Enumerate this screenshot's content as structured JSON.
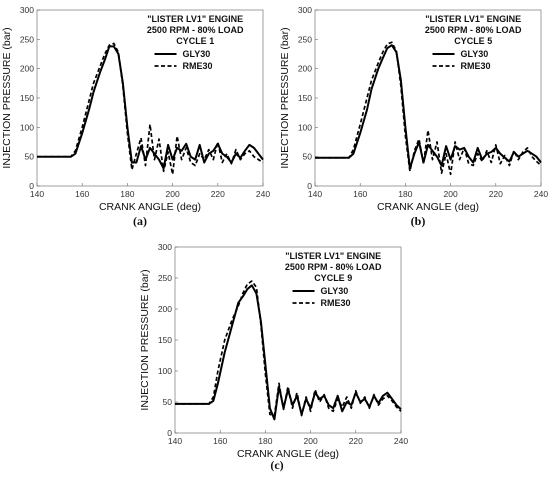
{
  "chart_data": [
    {
      "type": "line",
      "panel_label": "(a)",
      "title_lines": [
        "\"LISTER LV1\" ENGINE",
        "2500 RPM - 80% LOAD",
        "CYCLE 1"
      ],
      "xlabel": "CRANK ANGLE (deg)",
      "ylabel": "INJECTION PRESSURE (bar)",
      "xlim": [
        140,
        240
      ],
      "ylim": [
        0,
        300
      ],
      "xticks": [
        140,
        160,
        180,
        200,
        220,
        240
      ],
      "yticks": [
        0,
        50,
        100,
        150,
        200,
        250,
        300
      ],
      "grid": false,
      "legend_position": "top-right",
      "series": [
        {
          "name": "GLY30",
          "style": "solid",
          "color": "#000000",
          "x": [
            140,
            150,
            155,
            157,
            160,
            163,
            165,
            168,
            170,
            172,
            174,
            176,
            178,
            180,
            182,
            184,
            186,
            188,
            190,
            192,
            194,
            196,
            198,
            200,
            202,
            204,
            206,
            208,
            210,
            212,
            214,
            216,
            218,
            220,
            222,
            224,
            226,
            228,
            230,
            232,
            234,
            236,
            238,
            240
          ],
          "y": [
            50,
            50,
            50,
            55,
            90,
            130,
            160,
            195,
            215,
            238,
            238,
            225,
            175,
            100,
            40,
            40,
            68,
            45,
            65,
            55,
            45,
            30,
            70,
            45,
            65,
            60,
            72,
            50,
            45,
            70,
            40,
            55,
            60,
            72,
            55,
            50,
            40,
            55,
            48,
            60,
            70,
            65,
            55,
            45
          ]
        },
        {
          "name": "RME30",
          "style": "dashed",
          "color": "#000000",
          "x": [
            140,
            150,
            155,
            157,
            160,
            163,
            165,
            168,
            170,
            172,
            174,
            176,
            178,
            180,
            182,
            184,
            186,
            188,
            190,
            192,
            194,
            196,
            198,
            200,
            202,
            204,
            206,
            208,
            210,
            212,
            214,
            216,
            218,
            220,
            222,
            224,
            226,
            228,
            230,
            232,
            234,
            236,
            238,
            240
          ],
          "y": [
            50,
            50,
            50,
            60,
            100,
            145,
            175,
            205,
            225,
            240,
            243,
            228,
            170,
            90,
            28,
            55,
            82,
            35,
            105,
            45,
            80,
            25,
            58,
            20,
            85,
            45,
            65,
            40,
            35,
            55,
            45,
            62,
            45,
            75,
            40,
            55,
            38,
            62,
            45,
            55,
            60,
            50,
            45,
            40
          ]
        }
      ]
    },
    {
      "type": "line",
      "panel_label": "(b)",
      "title_lines": [
        "\"LISTER LV1\" ENGINE",
        "2500 RPM - 80% LOAD",
        "CYCLE 5"
      ],
      "xlabel": "CRANK ANGLE (deg)",
      "ylabel": "INJECTION PRESSURE (bar)",
      "xlim": [
        140,
        240
      ],
      "ylim": [
        0,
        300
      ],
      "xticks": [
        140,
        160,
        180,
        200,
        220,
        240
      ],
      "yticks": [
        0,
        50,
        100,
        150,
        200,
        250,
        300
      ],
      "grid": false,
      "legend_position": "top-right",
      "series": [
        {
          "name": "GLY30",
          "style": "solid",
          "color": "#000000",
          "x": [
            140,
            150,
            155,
            157,
            160,
            163,
            165,
            168,
            170,
            172,
            174,
            176,
            178,
            180,
            182,
            184,
            186,
            188,
            190,
            192,
            194,
            196,
            198,
            200,
            202,
            204,
            206,
            208,
            210,
            212,
            214,
            216,
            218,
            220,
            222,
            224,
            226,
            228,
            230,
            232,
            234,
            236,
            238,
            240
          ],
          "y": [
            48,
            48,
            48,
            55,
            90,
            130,
            165,
            200,
            218,
            235,
            240,
            228,
            180,
            100,
            30,
            55,
            75,
            40,
            70,
            60,
            50,
            35,
            68,
            45,
            68,
            62,
            65,
            50,
            40,
            65,
            45,
            55,
            58,
            65,
            55,
            48,
            42,
            58,
            50,
            55,
            60,
            55,
            50,
            40
          ]
        },
        {
          "name": "RME30",
          "style": "dashed",
          "color": "#000000",
          "x": [
            140,
            150,
            155,
            157,
            160,
            163,
            165,
            168,
            170,
            172,
            174,
            176,
            178,
            180,
            182,
            184,
            186,
            188,
            190,
            192,
            194,
            196,
            198,
            200,
            202,
            204,
            206,
            208,
            210,
            212,
            214,
            216,
            218,
            220,
            222,
            224,
            226,
            228,
            230,
            232,
            234,
            236,
            238,
            240
          ],
          "y": [
            48,
            48,
            48,
            62,
            105,
            150,
            180,
            210,
            228,
            242,
            245,
            230,
            170,
            85,
            25,
            60,
            80,
            38,
            95,
            45,
            75,
            22,
            55,
            20,
            75,
            45,
            65,
            38,
            35,
            55,
            42,
            60,
            40,
            70,
            38,
            52,
            35,
            60,
            45,
            58,
            65,
            50,
            42,
            35
          ]
        }
      ]
    },
    {
      "type": "line",
      "panel_label": "(c)",
      "title_lines": [
        "\"LISTER LV1\" ENGINE",
        "2500 RPM - 80% LOAD",
        "CYCLE 9"
      ],
      "xlabel": "CRANK ANGLE (deg)",
      "ylabel": "INJECTION PRESSURE (bar)",
      "xlim": [
        140,
        240
      ],
      "ylim": [
        0,
        300
      ],
      "xticks": [
        140,
        160,
        180,
        200,
        220,
        240
      ],
      "yticks": [
        0,
        50,
        100,
        150,
        200,
        250,
        300
      ],
      "grid": false,
      "legend_position": "top-right",
      "series": [
        {
          "name": "GLY30",
          "style": "solid",
          "color": "#000000",
          "x": [
            140,
            150,
            155,
            157,
            159,
            162,
            165,
            168,
            170,
            172,
            174,
            176,
            178,
            180,
            182,
            184,
            186,
            188,
            190,
            192,
            194,
            196,
            198,
            200,
            202,
            204,
            206,
            208,
            210,
            212,
            214,
            216,
            218,
            220,
            222,
            224,
            226,
            228,
            230,
            232,
            234,
            236,
            238,
            240
          ],
          "y": [
            47,
            47,
            47,
            52,
            80,
            130,
            170,
            210,
            220,
            232,
            238,
            225,
            180,
            110,
            40,
            22,
            75,
            40,
            70,
            45,
            60,
            30,
            55,
            40,
            65,
            55,
            60,
            45,
            40,
            60,
            35,
            50,
            45,
            65,
            50,
            55,
            42,
            60,
            48,
            60,
            65,
            55,
            45,
            38
          ]
        },
        {
          "name": "RME30",
          "style": "dashed",
          "color": "#000000",
          "x": [
            140,
            150,
            155,
            157,
            159,
            162,
            165,
            168,
            170,
            172,
            174,
            176,
            178,
            180,
            182,
            184,
            186,
            188,
            190,
            192,
            194,
            196,
            198,
            200,
            202,
            204,
            206,
            208,
            210,
            212,
            214,
            216,
            218,
            220,
            222,
            224,
            226,
            228,
            230,
            232,
            234,
            236,
            238,
            240
          ],
          "y": [
            47,
            47,
            47,
            58,
            100,
            150,
            180,
            205,
            225,
            240,
            245,
            235,
            175,
            95,
            30,
            28,
            80,
            38,
            75,
            40,
            65,
            28,
            58,
            35,
            70,
            50,
            62,
            40,
            35,
            55,
            42,
            58,
            40,
            68,
            48,
            58,
            40,
            62,
            45,
            55,
            60,
            52,
            42,
            35
          ]
        }
      ]
    }
  ]
}
